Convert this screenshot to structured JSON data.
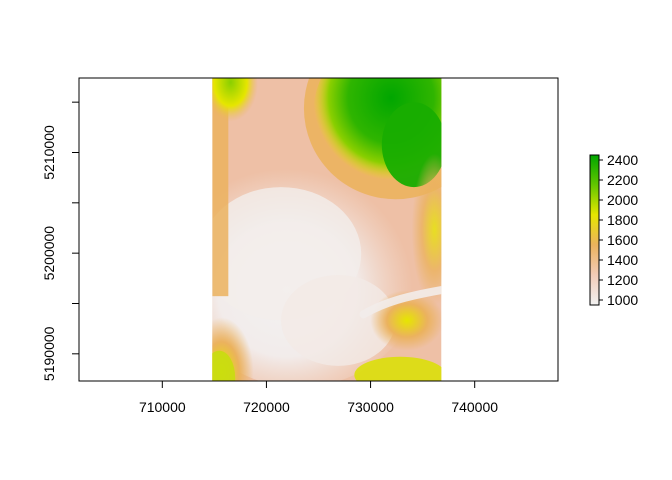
{
  "chart_data": {
    "type": "heatmap",
    "title": "",
    "xlabel": "",
    "ylabel": "",
    "xlim": [
      702000,
      748000
    ],
    "ylim": [
      5187300,
      5217400
    ],
    "raster_extent": {
      "xmin": 714800,
      "xmax": 736800,
      "ymin": 5187300,
      "ymax": 5217400
    },
    "x_ticks": [
      710000,
      720000,
      730000,
      740000
    ],
    "x_tick_labels": [
      "710000",
      "720000",
      "730000",
      "740000"
    ],
    "y_ticks": [
      5190000,
      5200000,
      5210000
    ],
    "y_tick_labels": [
      "5190000",
      "5200000",
      "5210000"
    ],
    "legend": {
      "placement": "right",
      "zlim": [
        950,
        2450
      ],
      "ticks": [
        1000,
        1200,
        1400,
        1600,
        1800,
        2000,
        2200,
        2400
      ],
      "tick_labels": [
        "1000",
        "1200",
        "1400",
        "1600",
        "1800",
        "2000",
        "2200",
        "2400"
      ],
      "colors": [
        "#F2F2F2",
        "#F2CBB7",
        "#EBB25E",
        "#E6E600",
        "#63C600",
        "#00A600"
      ]
    }
  }
}
